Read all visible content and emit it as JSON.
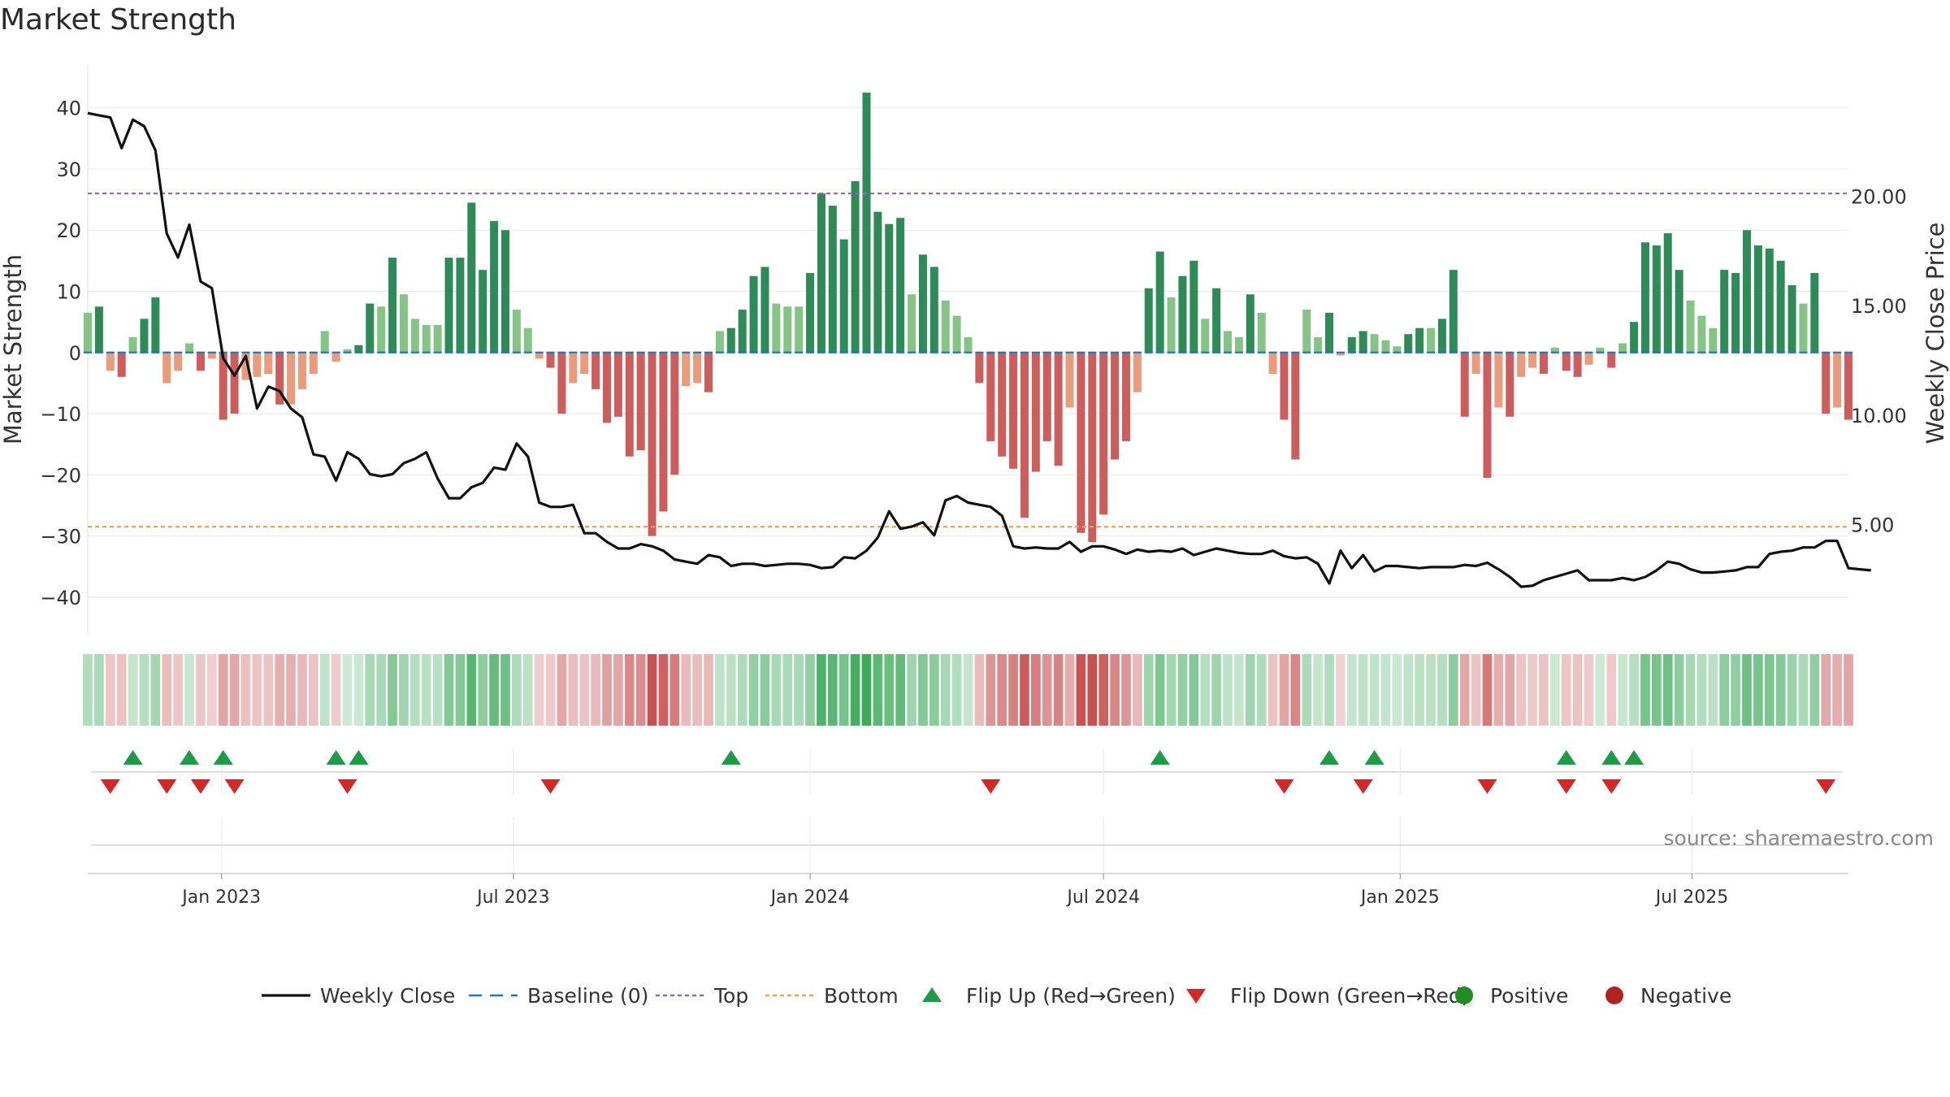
{
  "chart_data": {
    "type": "bar",
    "title": "Market Strength",
    "ylabel": "Market Strength",
    "y2label": "Weekly Close Price",
    "ylim": [
      -46,
      47
    ],
    "y2lim": [
      0,
      26
    ],
    "yticks": [
      40,
      30,
      20,
      10,
      0,
      -10,
      -20,
      -30,
      -40
    ],
    "ytick_labels": [
      "40",
      "30",
      "20",
      "10",
      "0",
      "−10",
      "−20",
      "−30",
      "−40"
    ],
    "y2ticks": [
      20,
      15,
      10,
      5
    ],
    "y2tick_labels": [
      "20.00",
      "15.00",
      "10.00",
      "5.00"
    ],
    "x_start": "2022-10-10",
    "x_end": "2025-10-06",
    "xticks": [
      {
        "date": "2023-01-01",
        "label": "Jan 2023"
      },
      {
        "date": "2023-07-01",
        "label": "Jul 2023"
      },
      {
        "date": "2024-01-01",
        "label": "Jan 2024"
      },
      {
        "date": "2024-07-01",
        "label": "Jul 2024"
      },
      {
        "date": "2025-01-01",
        "label": "Jan 2025"
      },
      {
        "date": "2025-07-01",
        "label": "Jul 2025"
      }
    ],
    "first_week": "2022-10-10",
    "strength": [
      6.5,
      7.5,
      -3,
      -4,
      2.5,
      5.5,
      9,
      -5,
      -3,
      1.5,
      -3,
      -1,
      -11,
      -10,
      -4.5,
      -4,
      -3.5,
      -8.5,
      -8.5,
      -6,
      -3.5,
      3.5,
      -1.5,
      0.5,
      1.2,
      8,
      7.5,
      15.5,
      9.5,
      5.5,
      4.5,
      4.5,
      15.5,
      15.5,
      24.5,
      13.5,
      21.5,
      20,
      7,
      4,
      -1,
      -2.5,
      -10,
      -5,
      -3.5,
      -6,
      -11.5,
      -10.5,
      -17,
      -16,
      -30,
      -26,
      -20,
      -5.5,
      -5,
      -6.5,
      3.5,
      4,
      7,
      12.5,
      14,
      8,
      7.5,
      7.5,
      13,
      26,
      24,
      18.5,
      28,
      42.5,
      23,
      21,
      22,
      9.5,
      16,
      14,
      8.5,
      6,
      2.5,
      -5,
      -14.5,
      -17,
      -19,
      -27,
      -19.5,
      -14.5,
      -18.5,
      -9,
      -29.5,
      -31,
      -26.5,
      -17.5,
      -14.5,
      -6.5,
      10.5,
      16.5,
      9,
      12.5,
      15,
      5.5,
      10.5,
      3.5,
      2.5,
      9.5,
      6.5,
      -3.5,
      -11,
      -17.5,
      7,
      2.5,
      6.5,
      -0.5,
      2.5,
      3.5,
      3,
      2,
      1,
      3,
      4,
      4,
      5.5,
      13.5,
      -10.5,
      -3.5,
      -20.5,
      -9,
      -10.5,
      -4,
      -2.5,
      -3.5,
      0.8,
      -3,
      -4,
      -2,
      0.8,
      -2.5,
      1.5,
      5,
      18,
      17.5,
      19.5,
      13.5,
      8.5,
      6,
      4,
      13.5,
      13,
      20,
      17.5,
      17,
      15,
      11,
      8,
      13,
      -10,
      -9,
      -11
    ],
    "close": [
      23.8,
      23.7,
      23.6,
      22.2,
      23.5,
      23.2,
      22.1,
      18.3,
      17.2,
      18.7,
      16.1,
      15.8,
      12.6,
      11.8,
      12.7,
      10.3,
      11.3,
      11.1,
      10.3,
      9.9,
      8.2,
      8.1,
      7.0,
      8.3,
      8.0,
      7.3,
      7.2,
      7.3,
      7.8,
      8.0,
      8.3,
      7.1,
      6.2,
      6.2,
      6.7,
      6.9,
      7.6,
      7.5,
      8.7,
      8.1,
      6.0,
      5.8,
      5.8,
      5.9,
      4.6,
      4.6,
      4.2,
      3.9,
      3.9,
      4.1,
      4.0,
      3.8,
      3.4,
      3.3,
      3.2,
      3.6,
      3.5,
      3.1,
      3.2,
      3.2,
      3.1,
      3.15,
      3.2,
      3.2,
      3.15,
      3.0,
      3.05,
      3.5,
      3.45,
      3.8,
      4.4,
      5.6,
      4.8,
      4.9,
      5.1,
      4.5,
      6.1,
      6.3,
      6.0,
      5.9,
      5.8,
      5.4,
      4.0,
      3.9,
      3.95,
      3.9,
      3.9,
      4.2,
      3.75,
      4.0,
      4.0,
      3.85,
      3.65,
      3.85,
      3.75,
      3.8,
      3.75,
      3.9,
      3.6,
      3.75,
      3.9,
      3.8,
      3.7,
      3.65,
      3.65,
      3.8,
      3.55,
      3.45,
      3.5,
      3.2,
      2.3,
      3.8,
      3.0,
      3.6,
      2.85,
      3.1,
      3.1,
      3.05,
      3.0,
      3.05,
      3.05,
      3.05,
      3.15,
      3.1,
      3.25,
      2.95,
      2.6,
      2.15,
      2.2,
      2.45,
      2.6,
      2.75,
      2.9,
      2.45,
      2.45,
      2.45,
      2.55,
      2.45,
      2.6,
      2.9,
      3.3,
      3.2,
      2.95,
      2.8,
      2.8,
      2.85,
      2.9,
      3.05,
      3.05,
      3.65,
      3.75,
      3.8,
      3.95,
      3.95,
      4.25,
      4.25,
      3.0,
      2.95,
      2.9
    ],
    "top_line": 26,
    "bottom_line": -28.5,
    "flip_up_weeks": [
      4,
      9,
      12,
      22,
      24,
      57,
      95,
      110,
      114,
      131,
      135,
      137
    ],
    "flip_down_weeks": [
      2,
      7,
      10,
      13,
      23,
      41,
      80,
      106,
      113,
      124,
      131,
      135,
      154
    ],
    "colors": {
      "pos_strong": "#2e8b57",
      "pos_weak": "#86c386",
      "neg_strong": "#cd5c5c",
      "neg_weak": "#e99b7b",
      "top": "#9467bd",
      "bottom": "#f0a050",
      "baseline": "#1f77b4",
      "flip_up": "#1f9a48",
      "flip_down": "#d62728",
      "positive": "#228b22",
      "negative": "#b22222",
      "close": "#111111"
    },
    "source": "source: sharemaestro.com",
    "legend": [
      {
        "kind": "line",
        "label": "Weekly Close",
        "color": "#111111"
      },
      {
        "kind": "dash",
        "label": "Baseline (0)",
        "color": "#1f77b4"
      },
      {
        "kind": "dot",
        "label": "Top",
        "color": "#9467bd"
      },
      {
        "kind": "dot",
        "label": "Bottom",
        "color": "#f0a050"
      },
      {
        "kind": "tri-up",
        "label": "Flip Up (Red→Green)",
        "color": "#1f9a48"
      },
      {
        "kind": "tri-down",
        "label": "Flip Down (Green→Red)",
        "color": "#d62728"
      },
      {
        "kind": "circle",
        "label": "Positive",
        "color": "#228b22"
      },
      {
        "kind": "circle",
        "label": "Negative",
        "color": "#b22222"
      }
    ],
    "legend_placement": "bottom-center"
  }
}
